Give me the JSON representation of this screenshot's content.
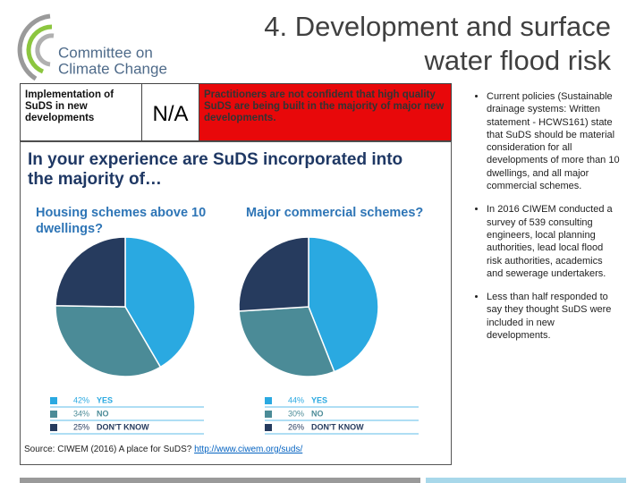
{
  "logo": {
    "line1": "Committee on",
    "line2": "Climate Change"
  },
  "title": {
    "line1": "4. Development and surface",
    "line2": "water flood risk"
  },
  "table": {
    "rows": [
      [
        "Implementation of SuDS in new developments",
        "N/A",
        "Practitioners are not confident that high quality SuDS are being built in the majority of major new developments."
      ]
    ]
  },
  "chart_heading": "In your experience are SuDS incorporated into the majority of…",
  "chart_data": [
    {
      "type": "pie",
      "title": "Housing schemes above 10 dwellings?",
      "categories": [
        "YES",
        "NO",
        "DON'T KNOW"
      ],
      "values": [
        42,
        34,
        25
      ],
      "value_labels": [
        "42%",
        "34%",
        "25%"
      ],
      "colors": [
        "#2aa9e1",
        "#4b8b97",
        "#263b5e"
      ]
    },
    {
      "type": "pie",
      "title": "Major commercial schemes?",
      "categories": [
        "YES",
        "NO",
        "DON'T KNOW"
      ],
      "values": [
        44,
        30,
        26
      ],
      "value_labels": [
        "44%",
        "30%",
        "26%"
      ],
      "colors": [
        "#2aa9e1",
        "#4b8b97",
        "#263b5e"
      ]
    }
  ],
  "source": {
    "text": "Source: CIWEM (2016) A place for SuDS?",
    "link": "http://www.ciwem.org/suds/"
  },
  "bullets": [
    "Current policies (Sustainable drainage systems: Written statement - HCWS161) state that SuDS should be material consideration for all developments of more than 10 dwellings, and all major commercial schemes.",
    "In 2016 CIWEM conducted a survey of 539 consulting engineers, local planning authorities, lead local flood risk authorities, academics and sewerage undertakers.",
    "Less than half responded to say they thought SuDS were included in new developments."
  ]
}
